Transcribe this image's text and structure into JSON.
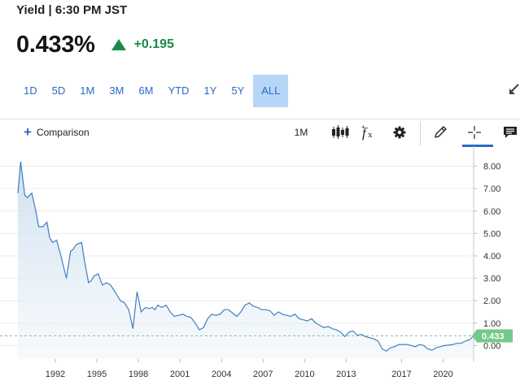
{
  "header": {
    "title": "Yield | 6:30 PM JST",
    "price": "0.433%",
    "change": "+0.195"
  },
  "ranges": {
    "items": [
      "1D",
      "5D",
      "1M",
      "3M",
      "6M",
      "YTD",
      "1Y",
      "5Y",
      "ALL"
    ],
    "active": "ALL"
  },
  "toolbar": {
    "comparison_label": "Comparison",
    "interval_label": "1M"
  },
  "colors": {
    "accent": "#2a6bc5",
    "up": "#1b8a4b",
    "line": "#3f7fc0",
    "current_badge": "#74c98a"
  },
  "chart_data": {
    "type": "area",
    "ylim": [
      -0.6,
      8.6
    ],
    "yticks": [
      "8.00",
      "7.00",
      "6.00",
      "5.00",
      "4.00",
      "3.00",
      "2.00",
      "1.00",
      "0.00"
    ],
    "xticks": [
      "1992",
      "1995",
      "1998",
      "2001",
      "2004",
      "2007",
      "2010",
      "2013",
      "2017",
      "2020"
    ],
    "current_value_label": "0.433",
    "x": [
      1989.3,
      1989.5,
      1989.8,
      1990.0,
      1990.3,
      1990.6,
      1990.8,
      1991.1,
      1991.4,
      1991.6,
      1991.8,
      1992.1,
      1992.4,
      1992.8,
      1993.1,
      1993.3,
      1993.5,
      1993.9,
      1994.1,
      1994.4,
      1994.6,
      1994.8,
      1995.1,
      1995.4,
      1995.7,
      1996.0,
      1996.4,
      1996.7,
      1997.0,
      1997.3,
      1997.6,
      1997.9,
      1998.2,
      1998.5,
      1998.8,
      1999.0,
      1999.2,
      1999.4,
      1999.7,
      2000.0,
      2000.3,
      2000.6,
      2000.9,
      2001.2,
      2001.5,
      2001.8,
      2002.1,
      2002.4,
      2002.7,
      2003.0,
      2003.3,
      2003.6,
      2003.9,
      2004.2,
      2004.5,
      2004.8,
      2005.1,
      2005.4,
      2005.7,
      2006.0,
      2006.3,
      2006.6,
      2006.9,
      2007.2,
      2007.5,
      2007.8,
      2008.1,
      2008.4,
      2008.7,
      2009.0,
      2009.3,
      2009.6,
      2009.9,
      2010.2,
      2010.5,
      2010.8,
      2011.1,
      2011.4,
      2011.7,
      2012.0,
      2012.3,
      2012.6,
      2012.9,
      2013.2,
      2013.5,
      2013.8,
      2014.1,
      2014.4,
      2014.7,
      2015.0,
      2015.3,
      2015.6,
      2015.9,
      2016.2,
      2016.5,
      2016.8,
      2017.1,
      2017.4,
      2017.7,
      2018.0,
      2018.3,
      2018.6,
      2018.9,
      2019.2,
      2019.5,
      2019.8,
      2020.1,
      2020.4,
      2020.7,
      2021.0,
      2021.3,
      2021.6,
      2021.9,
      2022.2
    ],
    "y": [
      6.8,
      8.2,
      6.7,
      6.6,
      6.8,
      6.0,
      5.3,
      5.3,
      5.5,
      4.8,
      4.6,
      4.7,
      4.0,
      3.0,
      4.2,
      4.3,
      4.5,
      4.6,
      3.8,
      2.8,
      2.9,
      3.1,
      3.2,
      2.7,
      2.8,
      2.7,
      2.3,
      2.0,
      1.9,
      1.6,
      0.75,
      2.4,
      1.5,
      1.7,
      1.65,
      1.7,
      1.6,
      1.8,
      1.7,
      1.8,
      1.5,
      1.3,
      1.35,
      1.4,
      1.3,
      1.25,
      1.0,
      0.7,
      0.8,
      1.2,
      1.4,
      1.35,
      1.4,
      1.6,
      1.6,
      1.45,
      1.3,
      1.5,
      1.8,
      1.9,
      1.75,
      1.7,
      1.6,
      1.6,
      1.55,
      1.35,
      1.5,
      1.4,
      1.35,
      1.3,
      1.4,
      1.2,
      1.15,
      1.1,
      1.2,
      1.0,
      0.9,
      0.8,
      0.85,
      0.75,
      0.7,
      0.6,
      0.4,
      0.6,
      0.65,
      0.45,
      0.5,
      0.4,
      0.35,
      0.3,
      0.2,
      -0.15,
      -0.25,
      -0.1,
      -0.05,
      0.05,
      0.05,
      0.05,
      0.0,
      -0.05,
      0.05,
      0.0,
      -0.15,
      -0.2,
      -0.1,
      -0.05,
      0.0,
      0.02,
      0.05,
      0.1,
      0.1,
      0.2,
      0.25,
      0.433
    ]
  }
}
